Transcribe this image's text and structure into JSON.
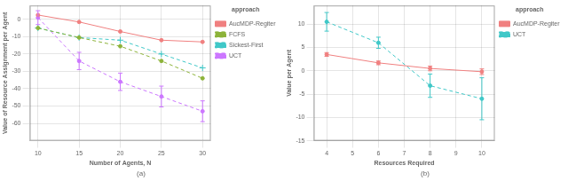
{
  "chart_data": [
    {
      "type": "line",
      "title": "(a)",
      "x_label": "Number of Agents, N",
      "y_label": "Value of Resource Assignment per Agent",
      "legend_title": "approach",
      "legend": "right",
      "grid": true,
      "xlim": [
        9,
        31
      ],
      "ylim": [
        -70,
        8
      ],
      "xticks": [
        10,
        15,
        20,
        25,
        30
      ],
      "yticks": [
        0,
        -10,
        -20,
        -30,
        -40,
        -50,
        -60
      ],
      "x": [
        10,
        15,
        20,
        25,
        30
      ],
      "series": [
        {
          "name": "AucMDP-Regiter",
          "color": "#F08080",
          "line_style": "solid",
          "marker": "circle",
          "values": [
            2.5,
            -1.5,
            -7.0,
            -12.0,
            -13.0
          ]
        },
        {
          "name": "FCFS",
          "color": "#8DB33A",
          "line_style": "dashed",
          "marker": "circle",
          "values": [
            -5.0,
            -10.5,
            -15.5,
            -24.0,
            -34.0
          ]
        },
        {
          "name": "Sickest-First",
          "color": "#40C8C8",
          "line_style": "dashed",
          "marker": "plus",
          "values": [
            -5.0,
            -10.5,
            -12.0,
            -20.0,
            -28.0
          ]
        },
        {
          "name": "UCT",
          "color": "#CC77FF",
          "line_style": "dashed",
          "marker": "circle",
          "values": [
            1.0,
            -24.0,
            -36.0,
            -44.5,
            -53.0
          ],
          "yerr": [
            4.0,
            5.0,
            5.0,
            6.0,
            6.0
          ]
        }
      ]
    },
    {
      "type": "line",
      "title": "(b)",
      "x_label": "Resources Required",
      "y_label": "Value per Agent",
      "legend_title": "approach",
      "legend": "right",
      "grid": true,
      "xlim": [
        3.5,
        10.5
      ],
      "ylim": [
        -15,
        14
      ],
      "xticks": [
        4,
        5,
        6,
        7,
        8,
        9,
        10
      ],
      "yticks": [
        10,
        5,
        0,
        -5,
        -10,
        -15
      ],
      "x": [
        4,
        6,
        8,
        10
      ],
      "series": [
        {
          "name": "AucMDP-Regiter",
          "color": "#F08080",
          "line_style": "solid",
          "marker": "circle",
          "values": [
            3.5,
            1.7,
            0.5,
            -0.2
          ],
          "yerr": [
            0.4,
            0.4,
            0.5,
            0.6
          ]
        },
        {
          "name": "UCT",
          "color": "#40C8C8",
          "line_style": "dashed",
          "marker": "circle",
          "values": [
            10.5,
            6.0,
            -3.2,
            -6.0
          ],
          "yerr": [
            2.0,
            1.2,
            2.5,
            4.5
          ]
        }
      ]
    }
  ]
}
